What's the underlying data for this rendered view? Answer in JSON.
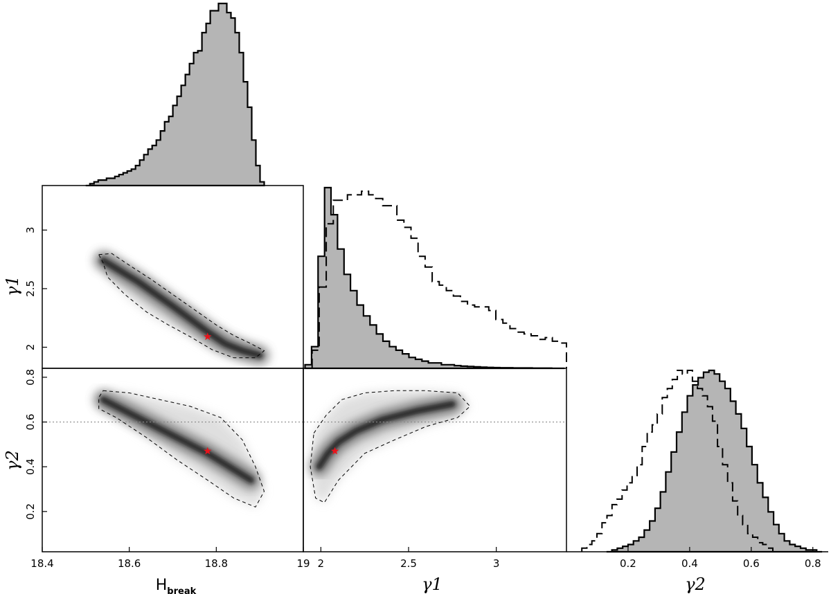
{
  "figure": {
    "type": "corner-plot"
  },
  "chart_data": [
    {
      "id": "hist-hbreak",
      "type": "histogram",
      "xlim": [
        18.4,
        19.0
      ],
      "filled_series": {
        "x_range": [
          18.5,
          18.91
        ],
        "counts": [
          0.0,
          0.01,
          0.02,
          0.03,
          0.03,
          0.04,
          0.04,
          0.05,
          0.06,
          0.07,
          0.08,
          0.09,
          0.11,
          0.14,
          0.17,
          0.2,
          0.22,
          0.25,
          0.3,
          0.35,
          0.38,
          0.44,
          0.49,
          0.55,
          0.61,
          0.67,
          0.73,
          0.74,
          0.84,
          0.89,
          0.96,
          0.96,
          1.0,
          1.0,
          0.95,
          0.92,
          0.84,
          0.73,
          0.57,
          0.43,
          0.25,
          0.11,
          0.02
        ]
      }
    },
    {
      "id": "density-gamma1-hbreak",
      "type": "heatmap",
      "x_axis": {
        "label": "",
        "lim": [
          18.4,
          19.0
        ],
        "ticks": []
      },
      "y_axis": {
        "label": "γ1",
        "lim": [
          1.82,
          3.38
        ],
        "ticks": [
          "2",
          "2.5",
          "3"
        ]
      },
      "ridge": {
        "x": [
          18.54,
          18.62,
          18.7,
          18.78,
          18.82,
          18.86,
          18.9
        ],
        "y": [
          2.74,
          2.56,
          2.35,
          2.13,
          2.03,
          1.97,
          1.93
        ]
      },
      "contour_68_95": {
        "x": [
          18.53,
          18.56,
          18.6,
          18.65,
          18.7,
          18.75,
          18.8,
          18.84,
          18.88,
          18.91,
          18.89,
          18.84,
          18.79,
          18.74,
          18.69,
          18.64,
          18.59,
          18.55,
          18.54
        ],
        "y": [
          2.79,
          2.8,
          2.7,
          2.58,
          2.45,
          2.32,
          2.19,
          2.1,
          2.03,
          1.97,
          1.91,
          1.91,
          1.98,
          2.09,
          2.19,
          2.3,
          2.45,
          2.6,
          2.72
        ]
      },
      "best_fit": {
        "x": 18.78,
        "y": 2.09
      }
    },
    {
      "id": "hist-gamma1",
      "type": "histogram",
      "xlim": [
        1.9,
        3.4
      ],
      "filled_series": {
        "x_range": [
          1.91,
          3.39
        ],
        "counts": [
          0.02,
          0.12,
          0.62,
          1.0,
          0.85,
          0.66,
          0.52,
          0.43,
          0.35,
          0.29,
          0.24,
          0.19,
          0.15,
          0.12,
          0.1,
          0.08,
          0.06,
          0.05,
          0.04,
          0.03,
          0.03,
          0.02,
          0.02,
          0.015,
          0.012,
          0.01,
          0.008,
          0.006,
          0.005,
          0.004,
          0.003,
          0.003,
          0.002,
          0.002,
          0.002,
          0.001,
          0.001,
          0.001,
          0.0,
          0.0
        ]
      },
      "dashed_series": {
        "x_range": [
          1.95,
          3.4
        ],
        "counts": [
          0.1,
          0.45,
          0.8,
          0.93,
          0.93,
          0.96,
          0.96,
          0.98,
          0.96,
          0.94,
          0.9,
          0.9,
          0.82,
          0.78,
          0.72,
          0.62,
          0.56,
          0.48,
          0.46,
          0.43,
          0.4,
          0.37,
          0.35,
          0.34,
          0.34,
          0.32,
          0.27,
          0.25,
          0.22,
          0.2,
          0.19,
          0.18,
          0.16,
          0.17,
          0.15,
          0.14
        ]
      }
    },
    {
      "id": "density-gamma2-hbreak",
      "type": "heatmap",
      "x_axis": {
        "label": "H",
        "label_sub": "break",
        "lim": [
          18.4,
          19.0
        ],
        "ticks": [
          "18.4",
          "18.6",
          "18.8",
          "19"
        ]
      },
      "y_axis": {
        "label": "γ2",
        "lim": [
          0.02,
          0.84
        ],
        "ticks": [
          "0.2",
          "0.4",
          "0.6",
          "0.8"
        ]
      },
      "ridge": {
        "x": [
          18.54,
          18.62,
          18.7,
          18.78,
          18.83,
          18.88
        ],
        "y": [
          0.7,
          0.62,
          0.54,
          0.46,
          0.4,
          0.34
        ]
      },
      "contour_68_95": {
        "x": [
          18.54,
          18.6,
          18.67,
          18.74,
          18.81,
          18.86,
          18.89,
          18.91,
          18.89,
          18.84,
          18.78,
          18.71,
          18.64,
          18.57,
          18.53,
          18.53
        ],
        "y": [
          0.74,
          0.73,
          0.7,
          0.67,
          0.62,
          0.52,
          0.4,
          0.29,
          0.22,
          0.26,
          0.34,
          0.43,
          0.53,
          0.62,
          0.66,
          0.71
        ]
      },
      "guide_line_y": 0.6,
      "best_fit": {
        "x": 18.78,
        "y": 0.47
      }
    },
    {
      "id": "density-gamma2-gamma1",
      "type": "heatmap",
      "x_axis": {
        "label": "γ1",
        "lim": [
          1.9,
          3.4
        ],
        "ticks": [
          "2",
          "2.5",
          "3"
        ]
      },
      "y_axis": {
        "lim": [
          0.02,
          0.84
        ]
      },
      "ridge": {
        "x": [
          1.99,
          2.04,
          2.1,
          2.2,
          2.35,
          2.55,
          2.75
        ],
        "y": [
          0.4,
          0.46,
          0.51,
          0.56,
          0.61,
          0.65,
          0.68
        ]
      },
      "contour_68_95": {
        "x": [
          1.96,
          2.03,
          2.12,
          2.25,
          2.42,
          2.6,
          2.78,
          2.85,
          2.78,
          2.6,
          2.42,
          2.25,
          2.1,
          2.02,
          1.97,
          1.94
        ],
        "y": [
          0.55,
          0.63,
          0.7,
          0.73,
          0.74,
          0.74,
          0.73,
          0.67,
          0.62,
          0.58,
          0.52,
          0.46,
          0.34,
          0.24,
          0.26,
          0.4
        ]
      },
      "guide_line_y": 0.6,
      "best_fit": {
        "x": 2.08,
        "y": 0.47
      }
    },
    {
      "id": "hist-gamma2",
      "type": "histogram",
      "xlim": [
        0.0,
        0.85
      ],
      "x_axis": {
        "label": "γ2",
        "ticks": [
          "0.2",
          "0.4",
          "0.6",
          "0.8"
        ]
      },
      "filled_series": {
        "x_range": [
          0.13,
          0.83
        ],
        "counts": [
          0.0,
          0.01,
          0.02,
          0.03,
          0.04,
          0.06,
          0.08,
          0.12,
          0.17,
          0.24,
          0.33,
          0.44,
          0.55,
          0.66,
          0.77,
          0.86,
          0.92,
          0.96,
          0.99,
          1.0,
          0.98,
          0.94,
          0.9,
          0.83,
          0.76,
          0.68,
          0.58,
          0.48,
          0.38,
          0.3,
          0.22,
          0.15,
          0.1,
          0.06,
          0.04,
          0.03,
          0.02,
          0.01,
          0.01,
          0.0
        ]
      },
      "dashed_series": {
        "x_range": [
          0.05,
          0.67
        ],
        "counts": [
          0.02,
          0.04,
          0.06,
          0.1,
          0.16,
          0.2,
          0.26,
          0.29,
          0.34,
          0.38,
          0.42,
          0.48,
          0.58,
          0.66,
          0.7,
          0.76,
          0.85,
          0.9,
          0.95,
          1.0,
          0.98,
          1.0,
          0.94,
          0.9,
          0.86,
          0.8,
          0.72,
          0.58,
          0.48,
          0.38,
          0.28,
          0.2,
          0.15,
          0.1,
          0.08,
          0.05,
          0.04,
          0.02
        ]
      }
    }
  ]
}
